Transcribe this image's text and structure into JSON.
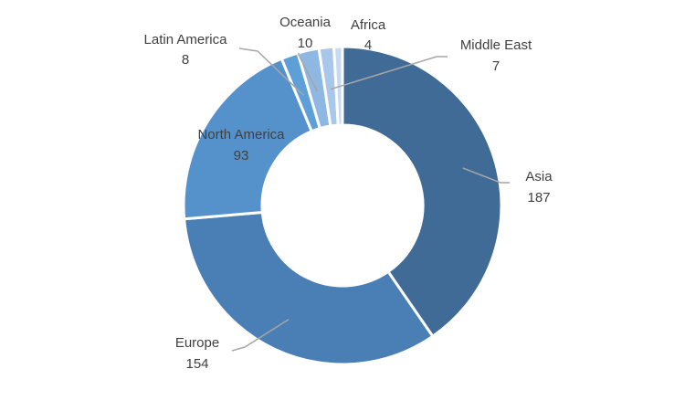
{
  "chart_data": {
    "type": "pie",
    "title": "",
    "slices": [
      {
        "label": "Asia",
        "value": 187,
        "color": "#3f6b96"
      },
      {
        "label": "Europe",
        "value": 154,
        "color": "#4a7fb5"
      },
      {
        "label": "North America",
        "value": 93,
        "color": "#5592cb"
      },
      {
        "label": "Latin America",
        "value": 8,
        "color": "#5f9fd8"
      },
      {
        "label": "Oceania",
        "value": 10,
        "color": "#8eb7e2"
      },
      {
        "label": "Middle East",
        "value": 7,
        "color": "#a9c7ea"
      },
      {
        "label": "Africa",
        "value": 4,
        "color": "#c7daf1"
      }
    ],
    "legend": "none",
    "leader_line_color": "#a6a6a6"
  }
}
